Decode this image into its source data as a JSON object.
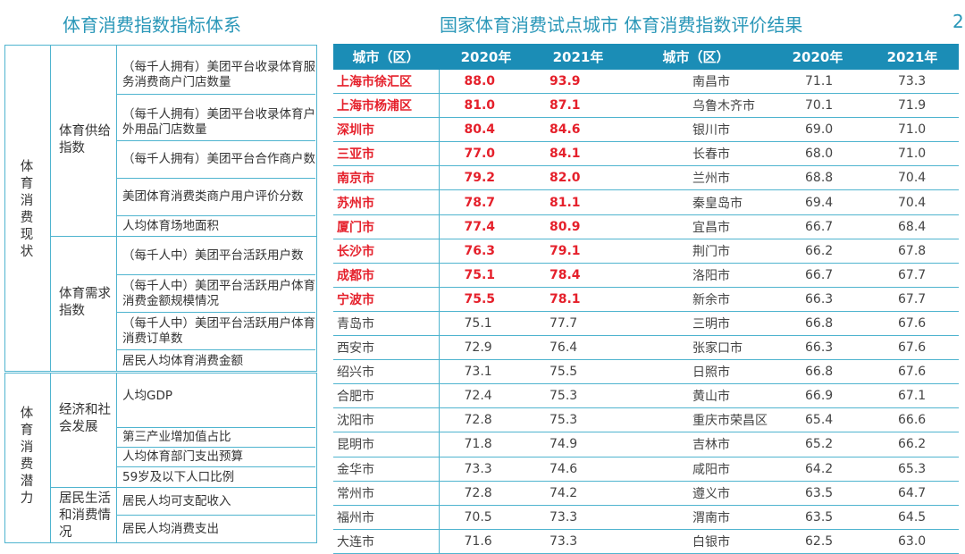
{
  "left_title": "体育消费指数指标体系",
  "right_title": "国家体育消费试点城市 体育消费指数评价结果",
  "edge_mark": "2",
  "indicator_system": {
    "status": {
      "label": "体育消费现状",
      "supply": {
        "label": "体育供给指数",
        "items": [
          "（每千人拥有）美团平台收录体育服务消费商户门店数量",
          "（每千人拥有）美团平台收录体育户外用品门店数量",
          "（每千人拥有）美团平台合作商户数",
          "美团体育消费类商户用户评价分数",
          "人均体育场地面积"
        ]
      },
      "demand": {
        "label": "体育需求指数",
        "items": [
          "（每千人中）美团平台活跃用户数",
          "（每千人中）美团平台活跃用户体育消费金额规模情况",
          "（每千人中）美团平台活跃用户体育消费订单数",
          "居民人均体育消费金额"
        ]
      }
    },
    "potential": {
      "label": "体育消费潜力",
      "economy": {
        "label": "经济和社会发展",
        "items": [
          "人均GDP",
          "第三产业增加值占比",
          "人均体育部门支出预算",
          "59岁及以下人口比例"
        ]
      },
      "living": {
        "label": "居民生活和消费情况",
        "items": [
          "居民人均可支配收入",
          "居民人均消费支出"
        ]
      }
    }
  },
  "table": {
    "headers": [
      "城市（区）",
      "2020年",
      "2021年",
      "城市（区）",
      "2020年",
      "2021年"
    ],
    "rows": [
      {
        "hi": true,
        "c": [
          "上海市徐汇区",
          "88.0",
          "93.9",
          "南昌市",
          "71.1",
          "73.3"
        ]
      },
      {
        "hi": true,
        "c": [
          "上海市杨浦区",
          "81.0",
          "87.1",
          "乌鲁木齐市",
          "70.1",
          "71.9"
        ]
      },
      {
        "hi": true,
        "c": [
          "深圳市",
          "80.4",
          "84.6",
          "银川市",
          "69.0",
          "71.0"
        ]
      },
      {
        "hi": true,
        "c": [
          "三亚市",
          "77.0",
          "84.1",
          "长春市",
          "68.0",
          "71.0"
        ]
      },
      {
        "hi": true,
        "c": [
          "南京市",
          "79.2",
          "82.0",
          "兰州市",
          "68.8",
          "70.4"
        ]
      },
      {
        "hi": true,
        "c": [
          "苏州市",
          "78.7",
          "81.1",
          "秦皇岛市",
          "69.4",
          "70.4"
        ]
      },
      {
        "hi": true,
        "c": [
          "厦门市",
          "77.4",
          "80.9",
          "宜昌市",
          "66.7",
          "68.4"
        ]
      },
      {
        "hi": true,
        "c": [
          "长沙市",
          "76.3",
          "79.1",
          "荆门市",
          "66.2",
          "67.8"
        ]
      },
      {
        "hi": true,
        "c": [
          "成都市",
          "75.1",
          "78.4",
          "洛阳市",
          "66.7",
          "67.7"
        ]
      },
      {
        "hi": true,
        "c": [
          "宁波市",
          "75.5",
          "78.1",
          "新余市",
          "66.3",
          "67.7"
        ]
      },
      {
        "hi": false,
        "c": [
          "青岛市",
          "75.1",
          "77.7",
          "三明市",
          "66.8",
          "67.6"
        ]
      },
      {
        "hi": false,
        "c": [
          "西安市",
          "72.9",
          "76.4",
          "张家口市",
          "66.3",
          "67.6"
        ]
      },
      {
        "hi": false,
        "c": [
          "绍兴市",
          "73.1",
          "75.5",
          "日照市",
          "66.8",
          "67.6"
        ]
      },
      {
        "hi": false,
        "c": [
          "合肥市",
          "72.4",
          "75.3",
          "黄山市",
          "66.9",
          "67.1"
        ]
      },
      {
        "hi": false,
        "c": [
          "沈阳市",
          "72.8",
          "75.3",
          "重庆市荣昌区",
          "65.4",
          "66.6"
        ]
      },
      {
        "hi": false,
        "c": [
          "昆明市",
          "71.8",
          "74.9",
          "吉林市",
          "65.2",
          "66.2"
        ]
      },
      {
        "hi": false,
        "c": [
          "金华市",
          "73.3",
          "74.6",
          "咸阳市",
          "64.2",
          "65.3"
        ]
      },
      {
        "hi": false,
        "c": [
          "常州市",
          "72.8",
          "74.2",
          "遵义市",
          "63.5",
          "64.7"
        ]
      },
      {
        "hi": false,
        "c": [
          "福州市",
          "70.5",
          "73.3",
          "渭南市",
          "63.5",
          "64.5"
        ]
      },
      {
        "hi": false,
        "c": [
          "大连市",
          "71.6",
          "73.3",
          "白银市",
          "62.5",
          "63.0"
        ]
      }
    ]
  }
}
